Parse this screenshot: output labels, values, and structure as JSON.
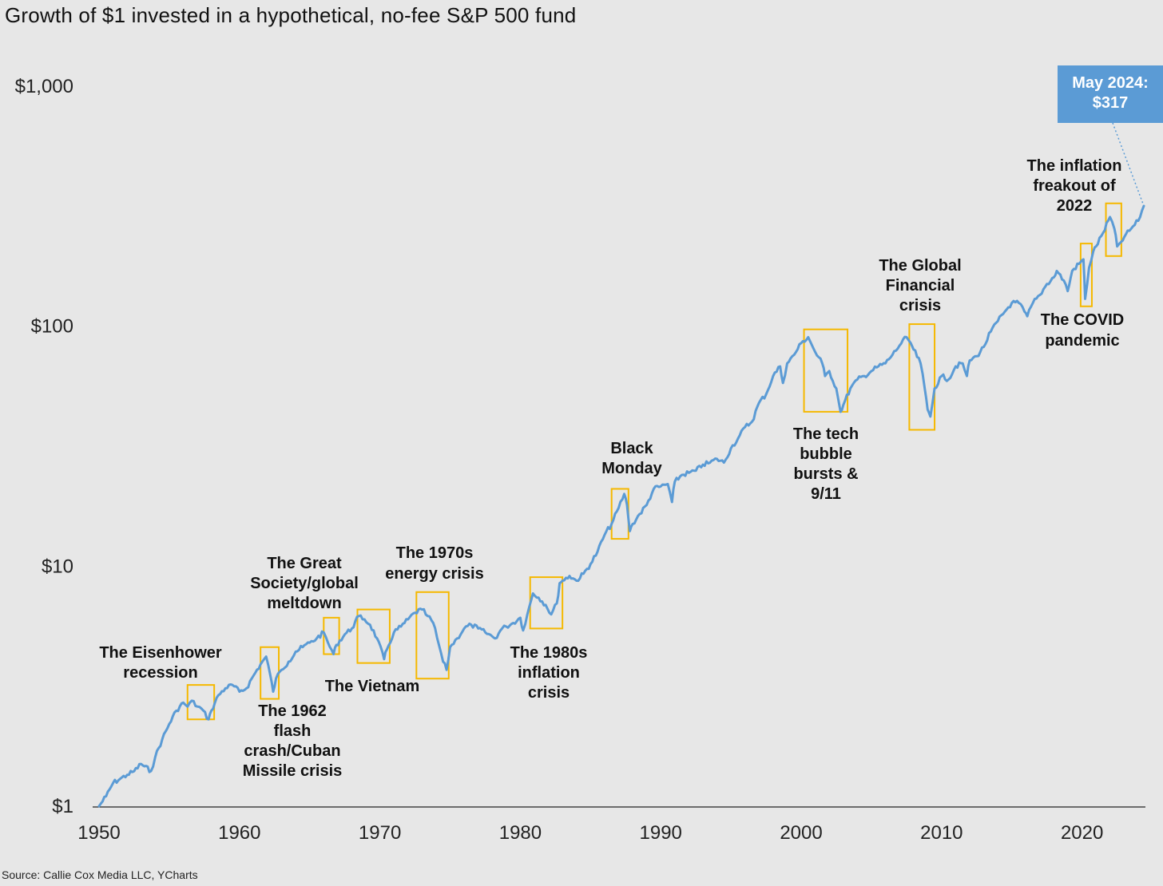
{
  "title": "Growth of $1 invested in a hypothetical, no-fee S&P 500 fund",
  "source": "Source: Callie Cox Media LLC, YCharts",
  "colors": {
    "line": "#5b9bd5",
    "box": "#f5b800",
    "callout_bg": "#5b9bd5",
    "background": "#e7e7e7"
  },
  "chart_data": {
    "type": "line",
    "title": "Growth of $1 invested in a hypothetical, no-fee S&P 500 fund",
    "xlabel": "",
    "ylabel": "",
    "y_scale": "log",
    "xlim": [
      1950,
      2024.4
    ],
    "ylim": [
      1,
      1000
    ],
    "y_ticks": [
      {
        "value": 1,
        "label": "$1"
      },
      {
        "value": 10,
        "label": "$10"
      },
      {
        "value": 100,
        "label": "$100"
      },
      {
        "value": 1000,
        "label": "$1,000"
      }
    ],
    "x_ticks": [
      {
        "value": 1950,
        "label": "1950"
      },
      {
        "value": 1960,
        "label": "1960"
      },
      {
        "value": 1970,
        "label": "1970"
      },
      {
        "value": 1980,
        "label": "1980"
      },
      {
        "value": 1990,
        "label": "1990"
      },
      {
        "value": 2000,
        "label": "2000"
      },
      {
        "value": 2010,
        "label": "2010"
      },
      {
        "value": 2020,
        "label": "2020"
      }
    ],
    "grid": false,
    "series": [
      {
        "x": [
          1950.0,
          1950.5,
          1951.0,
          1951.5,
          1952.0,
          1952.5,
          1953.0,
          1953.7,
          1954.0,
          1954.5,
          1955.0,
          1955.5,
          1956.0,
          1956.3,
          1956.6,
          1957.0,
          1957.3,
          1957.8,
          1958.0,
          1958.5,
          1959.0,
          1959.5,
          1960.0,
          1960.5,
          1961.0,
          1961.5,
          1961.9,
          1962.2,
          1962.4,
          1962.6,
          1963.0,
          1963.5,
          1964.0,
          1964.5,
          1965.0,
          1965.5,
          1966.0,
          1966.3,
          1966.7,
          1966.9,
          1967.5,
          1968.0,
          1968.5,
          1968.9,
          1969.3,
          1969.8,
          1970.3,
          1970.5,
          1971.0,
          1971.5,
          1972.0,
          1972.5,
          1973.0,
          1973.4,
          1973.8,
          1974.2,
          1974.5,
          1974.75,
          1975.0,
          1975.5,
          1976.0,
          1976.5,
          1977.0,
          1977.5,
          1978.0,
          1978.2,
          1978.7,
          1979.0,
          1979.5,
          1980.0,
          1980.2,
          1980.5,
          1980.9,
          1981.3,
          1981.8,
          1982.2,
          1982.6,
          1982.8,
          1983.0,
          1983.5,
          1984.0,
          1984.5,
          1985.0,
          1985.5,
          1986.0,
          1986.5,
          1987.0,
          1987.4,
          1987.6,
          1987.8,
          1988.0,
          1988.5,
          1989.0,
          1989.5,
          1990.0,
          1990.5,
          1990.8,
          1991.0,
          1991.5,
          1992.0,
          1992.5,
          1993.0,
          1993.5,
          1994.0,
          1994.5,
          1995.0,
          1995.5,
          1996.0,
          1996.5,
          1997.0,
          1997.5,
          1998.0,
          1998.5,
          1998.7,
          1999.0,
          1999.5,
          2000.0,
          2000.5,
          2000.7,
          2001.0,
          2001.5,
          2001.7,
          2002.0,
          2002.5,
          2002.8,
          2003.0,
          2003.5,
          2004.0,
          2004.5,
          2005.0,
          2005.5,
          2006.0,
          2006.5,
          2007.0,
          2007.5,
          2007.8,
          2008.0,
          2008.5,
          2008.8,
          2009.0,
          2009.2,
          2009.5,
          2010.0,
          2010.5,
          2011.0,
          2011.5,
          2011.8,
          2012.0,
          2012.5,
          2013.0,
          2013.5,
          2014.0,
          2014.5,
          2015.0,
          2015.5,
          2015.9,
          2016.1,
          2016.5,
          2017.0,
          2017.5,
          2018.0,
          2018.2,
          2018.7,
          2018.98,
          2019.3,
          2019.9,
          2020.1,
          2020.22,
          2020.5,
          2020.8,
          2021.0,
          2021.5,
          2021.99,
          2022.3,
          2022.5,
          2022.8,
          2023.0,
          2023.5,
          2024.0,
          2024.4
        ],
        "values": [
          1.0,
          1.1,
          1.25,
          1.3,
          1.35,
          1.4,
          1.5,
          1.4,
          1.6,
          1.9,
          2.2,
          2.5,
          2.7,
          2.6,
          2.75,
          2.6,
          2.55,
          2.3,
          2.5,
          2.9,
          3.1,
          3.2,
          3.0,
          3.1,
          3.5,
          3.9,
          4.2,
          3.5,
          3.0,
          3.4,
          3.7,
          4.0,
          4.4,
          4.6,
          4.8,
          5.0,
          5.3,
          4.8,
          4.3,
          4.7,
          5.2,
          5.5,
          6.2,
          6.0,
          5.7,
          5.0,
          4.1,
          4.5,
          5.3,
          5.6,
          6.0,
          6.4,
          6.6,
          6.2,
          5.8,
          4.7,
          4.0,
          3.7,
          4.6,
          5.0,
          5.5,
          5.7,
          5.5,
          5.3,
          5.1,
          5.0,
          5.5,
          5.6,
          5.8,
          6.1,
          5.4,
          6.3,
          7.7,
          7.4,
          6.9,
          6.3,
          7.0,
          8.5,
          8.7,
          9.1,
          8.7,
          9.3,
          10.2,
          11.5,
          13.5,
          15.0,
          17.5,
          20.0,
          18.0,
          14.0,
          15.0,
          16.5,
          18.0,
          21.0,
          21.5,
          22.0,
          18.5,
          22.5,
          24.0,
          24.5,
          25.0,
          26.5,
          27.0,
          28.0,
          27.0,
          31.0,
          34.0,
          38.0,
          40.0,
          48.0,
          52.0,
          62.0,
          68.0,
          58.0,
          70.0,
          76.0,
          85.0,
          90.0,
          85.0,
          78.0,
          70.0,
          62.0,
          65.0,
          55.0,
          44.0,
          47.0,
          55.0,
          60.0,
          62.0,
          65.0,
          68.0,
          70.0,
          76.0,
          83.0,
          90.0,
          85.0,
          80.0,
          70.0,
          55.0,
          45.0,
          42.0,
          55.0,
          62.0,
          60.0,
          68.0,
          70.0,
          62.0,
          72.0,
          75.0,
          82.0,
          95.0,
          105.0,
          115.0,
          125.0,
          125.0,
          115.0,
          110.0,
          125.0,
          135.0,
          150.0,
          160.0,
          170.0,
          155.0,
          140.0,
          170.0,
          185.0,
          190.0,
          130.0,
          175.0,
          205.0,
          215.0,
          245.0,
          285.0,
          255.0,
          215.0,
          225.0,
          235.0,
          255.0,
          275.0,
          317.0
        ]
      }
    ],
    "annotations": [
      {
        "id": "eisenhower",
        "lines": [
          "The Eisenhower",
          "recession"
        ],
        "box": {
          "x0": 1956.3,
          "x1": 1958.2,
          "y_low": 2.3,
          "y_high": 3.2
        }
      },
      {
        "id": "flash1962",
        "lines": [
          "The 1962",
          "flash",
          "crash/Cuban",
          "Missile crisis"
        ],
        "box": {
          "x0": 1961.5,
          "x1": 1962.8,
          "y_low": 2.8,
          "y_high": 4.6
        }
      },
      {
        "id": "great_society",
        "lines": [
          "The Great",
          "Society/global",
          "meltdown"
        ],
        "box": {
          "x0": 1966.0,
          "x1": 1967.1,
          "y_low": 4.3,
          "y_high": 6.1
        }
      },
      {
        "id": "vietnam",
        "lines": [
          "The Vietnam"
        ],
        "box": {
          "x0": 1968.4,
          "x1": 1970.7,
          "y_low": 3.95,
          "y_high": 6.6
        }
      },
      {
        "id": "energy1970s",
        "lines": [
          "The 1970s",
          "energy crisis"
        ],
        "box": {
          "x0": 1972.6,
          "x1": 1974.9,
          "y_low": 3.4,
          "y_high": 7.8
        }
      },
      {
        "id": "inflation1980s",
        "lines": [
          "The 1980s",
          "inflation",
          "crisis"
        ],
        "box": {
          "x0": 1980.7,
          "x1": 1983.0,
          "y_low": 5.5,
          "y_high": 9.0
        }
      },
      {
        "id": "black_monday",
        "lines": [
          "Black",
          "Monday"
        ],
        "box": {
          "x0": 1986.5,
          "x1": 1987.7,
          "y_low": 13.0,
          "y_high": 21.0
        }
      },
      {
        "id": "tech_bubble",
        "lines": [
          "The tech",
          "bubble",
          "bursts &",
          "9/11"
        ],
        "box": {
          "x0": 2000.2,
          "x1": 2003.3,
          "y_low": 44.0,
          "y_high": 97.0
        }
      },
      {
        "id": "gfc",
        "lines": [
          "The Global",
          "Financial",
          "crisis"
        ],
        "box": {
          "x0": 2007.7,
          "x1": 2009.5,
          "y_low": 37.0,
          "y_high": 102.0
        }
      },
      {
        "id": "covid",
        "lines": [
          "The COVID",
          "pandemic"
        ],
        "box": {
          "x0": 2019.9,
          "x1": 2020.7,
          "y_low": 121.0,
          "y_high": 221.0
        }
      },
      {
        "id": "inflation2022",
        "lines": [
          "The inflation",
          "freakout of",
          "2022"
        ],
        "box": {
          "x0": 2021.7,
          "x1": 2022.8,
          "y_low": 196.0,
          "y_high": 325.0
        }
      }
    ],
    "callout": {
      "lines": [
        "May 2024:",
        "$317"
      ],
      "x": 2024.4,
      "y": 317
    }
  }
}
